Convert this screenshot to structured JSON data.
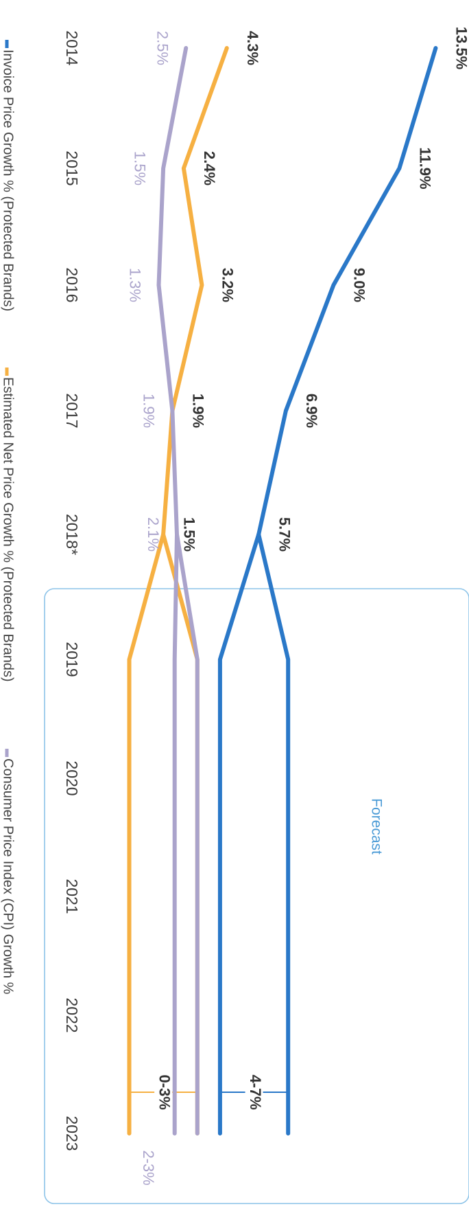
{
  "chart_data": {
    "type": "line",
    "categories": [
      "2014",
      "2015",
      "2016",
      "2017",
      "2018*",
      "2019",
      "2020",
      "2021",
      "2022",
      "2023"
    ],
    "ylim": [
      -5,
      15
    ],
    "forecast_label": "Forecast",
    "series": [
      {
        "name": "Invoice Price Growth % (Protected Brands)",
        "color": "#2a78c8",
        "values": [
          13.5,
          11.9,
          9.0,
          6.9,
          5.7,
          null,
          null,
          null,
          null,
          null
        ],
        "value_labels": [
          "13.5%",
          "11.9%",
          "9.0%",
          "6.9%",
          "5.7%",
          null,
          null,
          null,
          null,
          null
        ],
        "forecast_low": [
          null,
          null,
          null,
          null,
          null,
          4,
          4,
          4,
          4,
          4
        ],
        "forecast_high": [
          null,
          null,
          null,
          null,
          null,
          7,
          7,
          7,
          7,
          7
        ],
        "forecast_range_label": "4-7%"
      },
      {
        "name": "Estimated Net Price Growth % (Protected Brands)",
        "color": "#f6b042",
        "values": [
          4.3,
          2.4,
          3.2,
          1.9,
          1.5,
          null,
          null,
          null,
          null,
          null
        ],
        "value_labels": [
          "4.3%",
          "2.4%",
          "3.2%",
          "1.9%",
          "1.5%",
          null,
          null,
          null,
          null,
          null
        ],
        "forecast_low": [
          null,
          null,
          null,
          null,
          null,
          0,
          0,
          0,
          0,
          0
        ],
        "forecast_high": [
          null,
          null,
          null,
          null,
          null,
          3,
          3,
          3,
          3,
          3
        ],
        "forecast_range_label": "0-3%"
      },
      {
        "name": "Consumer Price Index (CPI) Growth %",
        "color": "#aaa3cb",
        "values": [
          2.5,
          1.5,
          1.3,
          1.9,
          2.1,
          null,
          null,
          null,
          null,
          null
        ],
        "value_labels": [
          "2.5%",
          "1.5%",
          "1.3%",
          "1.9%",
          "2.1%",
          null,
          null,
          null,
          null,
          null
        ],
        "forecast_low": [
          null,
          null,
          null,
          null,
          null,
          2,
          2,
          2,
          2,
          2
        ],
        "forecast_high": [
          null,
          null,
          null,
          null,
          null,
          3,
          3,
          3,
          3,
          3
        ],
        "forecast_range_label": "2-3%"
      }
    ]
  }
}
